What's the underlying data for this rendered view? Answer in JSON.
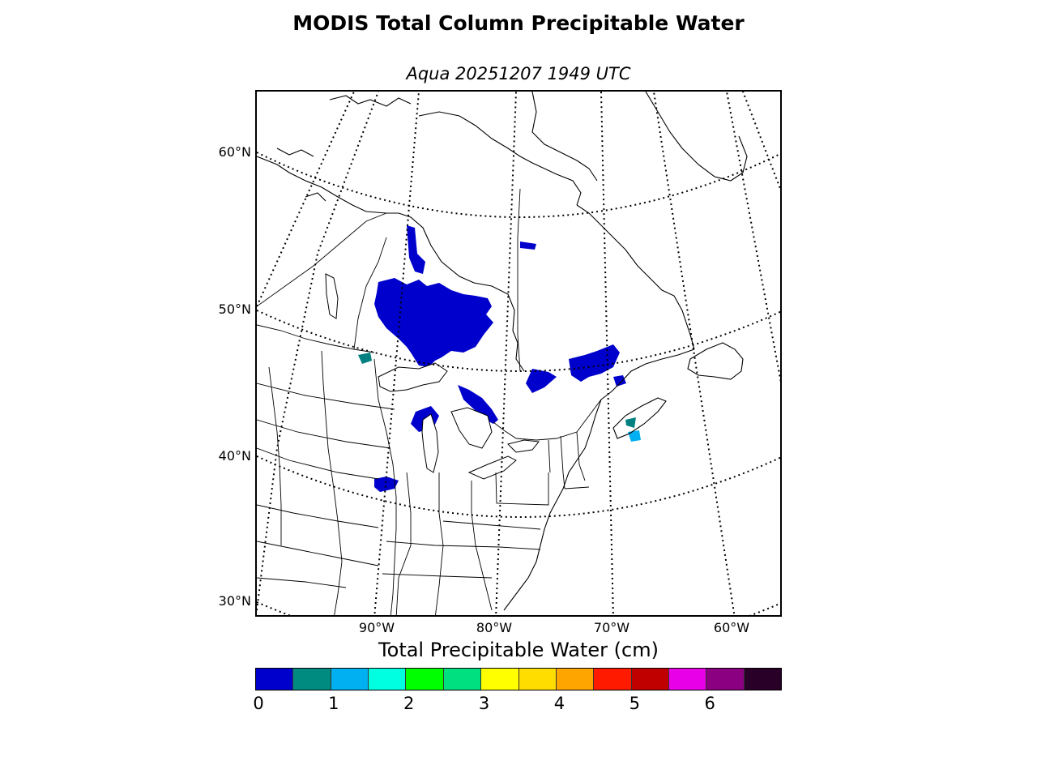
{
  "title": "MODIS Total Column Precipitable Water",
  "subtitle": "Aqua 20251207 1949 UTC",
  "map": {
    "lat_labels": [
      "60°N",
      "50°N",
      "40°N",
      "30°N"
    ],
    "lon_labels": [
      "90°W",
      "80°W",
      "70°W",
      "60°W"
    ],
    "graticule_style": "dotted",
    "data_color": "#0000cc",
    "data_secondary_color": "#008080"
  },
  "colorbar": {
    "label": "Total Precipitable Water (cm)",
    "ticks": [
      "0",
      "1",
      "2",
      "3",
      "4",
      "5",
      "6"
    ],
    "colors": [
      "#0000cd",
      "#008b80",
      "#00b0f0",
      "#00ffe0",
      "#00ff00",
      "#00e080",
      "#ffff00",
      "#ffdd00",
      "#ffa500",
      "#ff1a00",
      "#c00000",
      "#e800e8",
      "#8b0080",
      "#280028"
    ]
  }
}
